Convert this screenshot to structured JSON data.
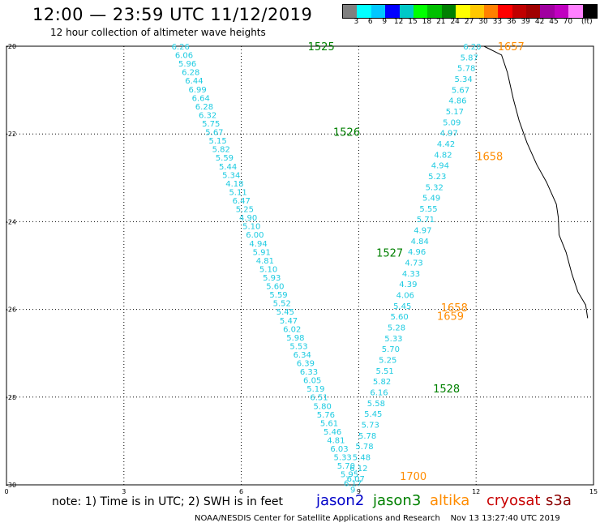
{
  "header": {
    "title": "12:00 — 23:59 UTC 11/12/2019",
    "subtitle": "12 hour collection of altimeter wave heights"
  },
  "legend": {
    "colors": [
      "#808080",
      "#00ffff",
      "#00c8ff",
      "#0000ff",
      "#00c8c8",
      "#00ff00",
      "#00c000",
      "#008000",
      "#ffff00",
      "#ffc800",
      "#ff8000",
      "#ff0000",
      "#c00000",
      "#a00000",
      "#a000a0",
      "#c000c0",
      "#ff80ff",
      "#000000"
    ],
    "labels": [
      "3",
      "6",
      "9",
      "12",
      "15",
      "18",
      "21",
      "24",
      "27",
      "30",
      "33",
      "36",
      "39",
      "42",
      "45",
      "70",
      "(ft)"
    ]
  },
  "axes": {
    "x_ticks": [
      "0",
      "3",
      "6",
      "9",
      "12",
      "15"
    ],
    "y_ticks": [
      "-20",
      "-22",
      "-24",
      "-26",
      "-28",
      "-30"
    ]
  },
  "colors": {
    "swh": "#1ecbe1",
    "jason3": "#008000",
    "altika": "#ff8c00",
    "jason2": "#0000c8",
    "cryosat": "#c80000",
    "s3a": "#8b0000"
  },
  "track1": {
    "values": [
      "6.26",
      "6.06",
      "5.96",
      "6.28",
      "6.44",
      "6.99",
      "6.64",
      "6.28",
      "6.32",
      "5.75",
      "5.67",
      "5.15",
      "5.82",
      "5.59",
      "5.44",
      "5.34",
      "4.18",
      "5.11",
      "6.47",
      "5.25",
      "4.90",
      "5.10",
      "6.00",
      "4.94",
      "5.91",
      "4.81",
      "5.10",
      "5.93",
      "5.60",
      "5.59",
      "5.52",
      "5.45",
      "5.47",
      "6.02",
      "5.98",
      "5.53",
      "6.34",
      "6.39",
      "6.33",
      "6.05",
      "5.19",
      "6.51",
      "5.80",
      "5.76",
      "5.61",
      "5.46",
      "4.81",
      "6.03",
      "5.33",
      "5.70",
      "5.95",
      "6.17"
    ]
  },
  "track2": {
    "values": [
      "6.20",
      "5.87",
      "5.78",
      "5.34",
      "5.67",
      "4.86",
      "5.17",
      "5.09",
      "4.97",
      "4.42",
      "4.82",
      "4.94",
      "5.23",
      "5.32",
      "5.49",
      "5.55",
      "5.71",
      "4.97",
      "4.84",
      "4.96",
      "4.73",
      "4.33",
      "4.39",
      "4.06",
      "5.45",
      "5.60",
      "5.28",
      "5.33",
      "5.70",
      "5.25",
      "5.51",
      "5.82",
      "6.16",
      "5.58",
      "5.45",
      "5.73",
      "5.78",
      "5.78",
      "5.48",
      "6.12",
      "6.07",
      "9"
    ]
  },
  "time_labels": [
    {
      "text": "1525",
      "sat": "jason3",
      "lon": 7.7,
      "lat": -20.0
    },
    {
      "text": "1526",
      "sat": "jason3",
      "lon": 8.35,
      "lat": -21.95
    },
    {
      "text": "1527",
      "sat": "jason3",
      "lon": 9.45,
      "lat": -24.7
    },
    {
      "text": "1528",
      "sat": "jason3",
      "lon": 10.9,
      "lat": -27.8
    },
    {
      "text": "1657",
      "sat": "altika",
      "lon": 12.55,
      "lat": -20.0
    },
    {
      "text": "1658",
      "sat": "altika",
      "lon": 12.0,
      "lat": -22.5
    },
    {
      "text": "1658",
      "sat": "altika",
      "lon": 11.1,
      "lat": -25.95
    },
    {
      "text": "1659",
      "sat": "altika",
      "lon": 11.0,
      "lat": -26.15
    },
    {
      "text": "1700",
      "sat": "altika",
      "lon": 10.05,
      "lat": -29.8
    }
  ],
  "note": "note: 1) Time is in UTC; 2) SWH is in feet",
  "satellites": [
    "jason2",
    "jason3",
    "altika",
    "cryosat",
    "s3a"
  ],
  "footer": "NOAA/NESDIS Center for Satellite Applications and Research    Nov 13 13:27:40 UTC 2019"
}
